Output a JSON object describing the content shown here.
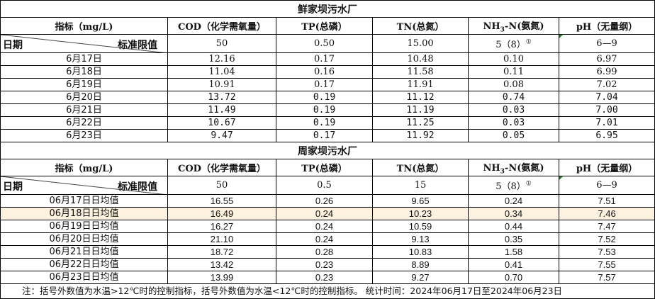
{
  "headers": {
    "indicator": "指标（mg/L)",
    "cod": "COD（化学需氧量）",
    "tp": "TP(总磷）",
    "tn": "TN(总氮）",
    "nh3_pre": "NH",
    "nh3_sub": "3",
    "nh3_post": "-N(氨氮)",
    "ph": "pH（无量纲）",
    "date": "日期",
    "standard": "标准限值"
  },
  "tables": [
    {
      "title": "鲜家坝污水厂",
      "standard": {
        "cod": "50",
        "tp": "0.50",
        "tn": "15.00",
        "nh3": "5（8）",
        "nh3_note": "①",
        "ph": "6—9"
      },
      "rows": [
        {
          "date": "6月17日",
          "cod": "12.16",
          "tp": "0.17",
          "tn": "10.48",
          "nh3": "0.10",
          "ph": "6.97"
        },
        {
          "date": "6月18日",
          "cod": "11.04",
          "tp": "0.16",
          "tn": "11.58",
          "nh3": "0.11",
          "ph": "6.99"
        },
        {
          "date": "6月19日",
          "cod": "10.91",
          "tp": "0.17",
          "tn": "11.91",
          "nh3": "0.08",
          "ph": "7.02"
        },
        {
          "date": "6月20日",
          "cod": "13.72",
          "tp": "0.19",
          "tn": "11.12",
          "nh3": "0.74",
          "ph": "7.04"
        },
        {
          "date": "6月21日",
          "cod": "11.49",
          "tp": "0.19",
          "tn": "11.19",
          "nh3": "0.03",
          "ph": "7.00"
        },
        {
          "date": "6月22日",
          "cod": "10.67",
          "tp": "0.19",
          "tn": "11.25",
          "nh3": "0.03",
          "ph": "7.01"
        },
        {
          "date": "6月23日",
          "cod": "9.47",
          "tp": "0.17",
          "tn": "11.92",
          "nh3": "0.05",
          "ph": "6.95"
        }
      ]
    },
    {
      "title": "周家坝污水厂",
      "standard": {
        "cod": "50",
        "tp": "0.5",
        "tn": "15",
        "nh3": "5（8）",
        "nh3_note": "①",
        "ph": "6—9"
      },
      "rows": [
        {
          "date": "06月17日日均值",
          "cod": "16.55",
          "tp": "0.26",
          "tn": "9.65",
          "nh3": "0.24",
          "ph": "7.51"
        },
        {
          "date": "06月18日日均值",
          "cod": "16.49",
          "tp": "0.24",
          "tn": "10.23",
          "nh3": "0.34",
          "ph": "7.46"
        },
        {
          "date": "06月19日日均值",
          "cod": "16.27",
          "tp": "0.24",
          "tn": "10.59",
          "nh3": "0.44",
          "ph": "7.47"
        },
        {
          "date": "06月20日日均值",
          "cod": "21.10",
          "tp": "0.24",
          "tn": "9.13",
          "nh3": "0.35",
          "ph": "7.52"
        },
        {
          "date": "06月21日日均值",
          "cod": "18.72",
          "tp": "0.28",
          "tn": "10.83",
          "nh3": "1.58",
          "ph": "7.53"
        },
        {
          "date": "06月22日日均值",
          "cod": "13.42",
          "tp": "0.23",
          "tn": "8.89",
          "nh3": "0.41",
          "ph": "7.55"
        },
        {
          "date": "06月23日日均值",
          "cod": "13.99",
          "tp": "0.23",
          "tn": "9.27",
          "nh3": "0.70",
          "ph": "7.57"
        }
      ]
    }
  ],
  "footnote": "注：括号外数值为水温>12℃时的控制指标，括号外数值为水温<12℃时的控制指标。  统计时间：2024年06月17日至2024年06月23日",
  "colors": {
    "highlight_row": "#fdf2e0",
    "comment_marker": "#1a8a1a"
  }
}
